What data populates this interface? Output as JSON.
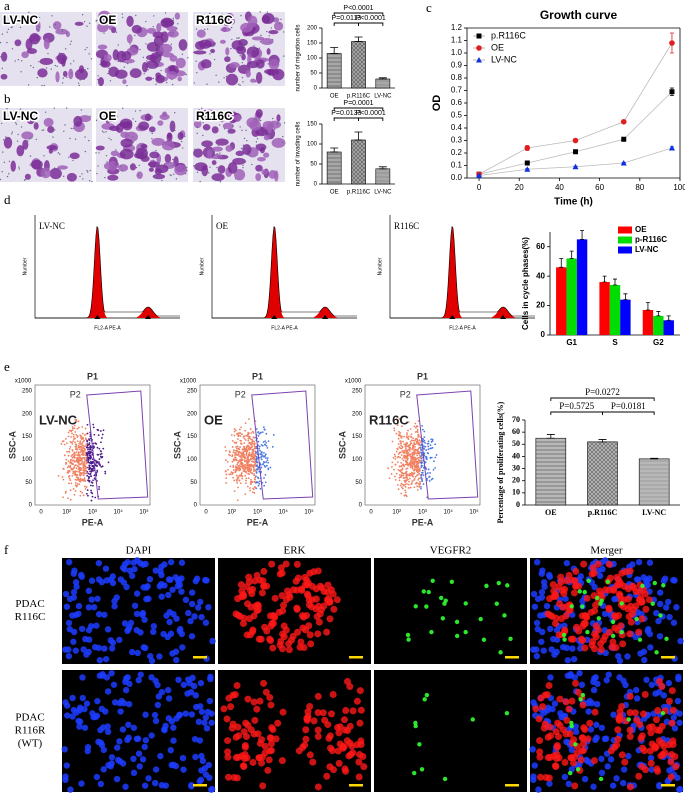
{
  "panel_labels": [
    "a",
    "b",
    "c",
    "d",
    "e",
    "f"
  ],
  "migration_images": [
    "LV-NC",
    "OE",
    "R116C"
  ],
  "invasion_images": [
    "LV-NC",
    "OE",
    "R116C"
  ],
  "cell_cycle_histograms": {
    "labels": [
      "LV-NC",
      "OE",
      "R116C"
    ],
    "x_axis_label": "FL2-A PE-A",
    "y_axis_label": "Number"
  },
  "flow_cytometry": {
    "labels": [
      "LV-NC",
      "OE",
      "R116C"
    ],
    "gates": [
      "P1",
      "P2"
    ],
    "x_axis_label": "PE-A",
    "y_axis_label": "SSC-A",
    "y_scale": "x1000",
    "xtick_labels": [
      "0",
      "10²",
      "10³",
      "10⁴",
      "10⁵"
    ],
    "ytick_labels": [
      "0",
      "50",
      "100",
      "150",
      "200",
      "250"
    ]
  },
  "immunofluorescence": {
    "columns": [
      "DAPI",
      "ERK",
      "VEGFR2",
      "Merger"
    ],
    "rows": [
      [
        "PDAC",
        "R116C"
      ],
      [
        "PDAC",
        "R116R",
        "(WT)"
      ]
    ]
  },
  "chart_data": [
    {
      "type": "bar",
      "y_label": "number of migration cells",
      "categories": [
        "OE",
        "p.R116C",
        "LV-NC"
      ],
      "values": [
        115,
        155,
        30
      ],
      "errors": [
        20,
        15,
        4
      ],
      "color": "#a8a8a8",
      "ylim": [
        0,
        200
      ],
      "yticks": [
        0,
        50,
        100,
        150,
        200
      ],
      "annotations": [
        "P<0.0001",
        "P=0.0113",
        "P<0.0001"
      ]
    },
    {
      "type": "bar",
      "y_label": "number of invading cells",
      "categories": [
        "OE",
        "p.R116C",
        "LV-NC"
      ],
      "values": [
        80,
        110,
        38
      ],
      "errors": [
        10,
        20,
        5
      ],
      "color": "#a8a8a8",
      "ylim": [
        0,
        150
      ],
      "yticks": [
        0,
        50,
        100,
        150
      ],
      "annotations": [
        "P=0.0001",
        "P=0.0133",
        "P<0.0001"
      ]
    },
    {
      "type": "line",
      "title": "Growth curve",
      "x_label": "Time (h)",
      "y_label": "OD",
      "x": [
        0,
        24,
        48,
        72,
        96
      ],
      "xlim": [
        -6,
        100
      ],
      "xticks": [
        0,
        20,
        40,
        60,
        80,
        100
      ],
      "ylim": [
        0,
        1.2
      ],
      "yticks": [
        {
          "value": 0,
          "label": "0.0"
        },
        0.1,
        0.2,
        0.3,
        0.4,
        0.5,
        0.6,
        0.7,
        0.8,
        0.9,
        {
          "value": 1,
          "label": "1.0"
        },
        1.1,
        1.2
      ],
      "legend": "upper left",
      "series": [
        {
          "name": "p.R116C",
          "color": "#000000",
          "marker": "square",
          "values": [
            0.03,
            0.12,
            0.21,
            0.31,
            0.69
          ],
          "errors": [
            0.01,
            0.01,
            0.01,
            0.01,
            0.03
          ]
        },
        {
          "name": "OE",
          "color": "#e02020",
          "marker": "circle",
          "values": [
            0.03,
            0.24,
            0.3,
            0.45,
            1.08
          ],
          "errors": [
            0.01,
            0.02,
            0.01,
            0.01,
            0.08
          ]
        },
        {
          "name": "LV-NC",
          "color": "#1030e0",
          "marker": "triangle",
          "values": [
            0.02,
            0.07,
            0.09,
            0.12,
            0.24
          ],
          "errors": [
            0.005,
            0.005,
            0.005,
            0.005,
            0.01
          ]
        }
      ]
    },
    {
      "type": "bar",
      "y_label": "Cells in cycle phases(%)",
      "categories": [
        "G1",
        "S",
        "G2"
      ],
      "ylim": [
        0,
        70
      ],
      "yticks": [
        0,
        20,
        40,
        60
      ],
      "legend": "upper right",
      "series": [
        {
          "name": "OE",
          "color": "#ff0000",
          "values": [
            46,
            36,
            17
          ],
          "errors": [
            6,
            4,
            5
          ]
        },
        {
          "name": "p-R116C",
          "color": "#00dd00",
          "values": [
            52,
            34,
            13
          ],
          "errors": [
            5,
            4,
            3
          ]
        },
        {
          "name": "LV-NC",
          "color": "#0000ff",
          "values": [
            65,
            24,
            10
          ],
          "errors": [
            6,
            4,
            3
          ]
        }
      ]
    },
    {
      "type": "bar",
      "y_label": "Percentage of proliferating cells(%)",
      "categories": [
        "OE",
        "p.R116C",
        "LV-NC"
      ],
      "values": [
        55,
        52,
        38
      ],
      "errors": [
        3,
        2,
        0.5
      ],
      "color": "#b8b8b8",
      "ylim": [
        0,
        70
      ],
      "yticks": [
        0,
        10,
        20,
        30,
        40,
        50,
        60,
        70
      ],
      "annotations": [
        "P=0.0272",
        "P=0.5725",
        "P=0.0181"
      ]
    }
  ]
}
